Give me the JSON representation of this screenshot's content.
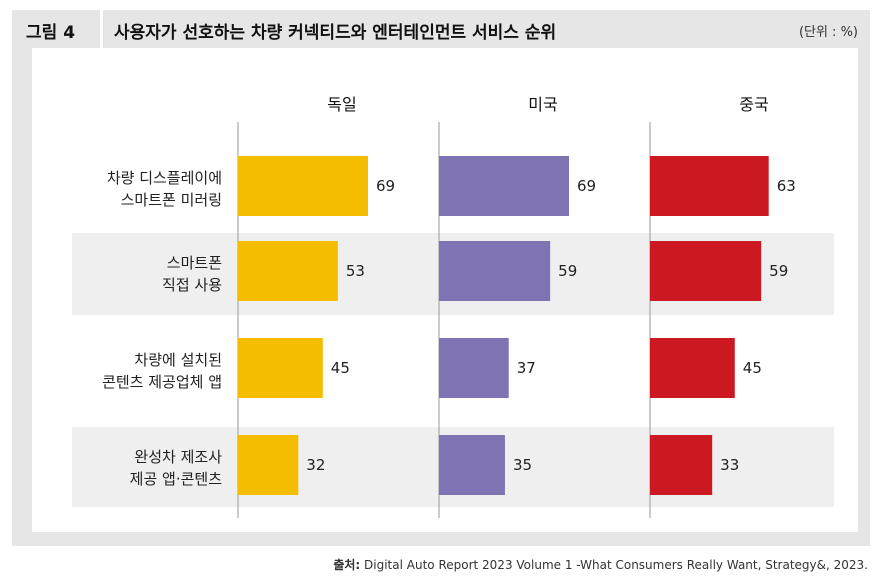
{
  "figure": {
    "label": "그림 4",
    "title": "사용자가 선호하는 차량 커넥티드와 엔터테인먼트 서비스 순위",
    "unit": "(단위 : %)"
  },
  "source": {
    "label": "출처:",
    "text": "Digital Auto Report 2023 Volume 1 -What Consumers Really Want, Strategy&, 2023."
  },
  "colors": {
    "germany": "#f5bd00",
    "usa": "#8073b4",
    "china": "#cc1820",
    "band": "#efefef",
    "axis": "#9a9a9a"
  },
  "chart_data": {
    "type": "bar",
    "orientation": "horizontal",
    "categories": [
      [
        "차량 디스플레이에",
        "스마트폰 미러링"
      ],
      [
        "스마트폰",
        "직접 사용"
      ],
      [
        "차량에 설치된",
        "콘텐츠 제공업체 앱"
      ],
      [
        "완성차 제조사",
        "제공 앱·콘텐츠"
      ]
    ],
    "series": [
      {
        "name": "독일",
        "values": [
          69,
          53,
          45,
          32
        ]
      },
      {
        "name": "미국",
        "values": [
          69,
          59,
          37,
          35
        ]
      },
      {
        "name": "중국",
        "values": [
          63,
          59,
          45,
          33
        ]
      }
    ],
    "xlim": [
      0,
      100
    ],
    "grid": false,
    "legend": "none"
  }
}
